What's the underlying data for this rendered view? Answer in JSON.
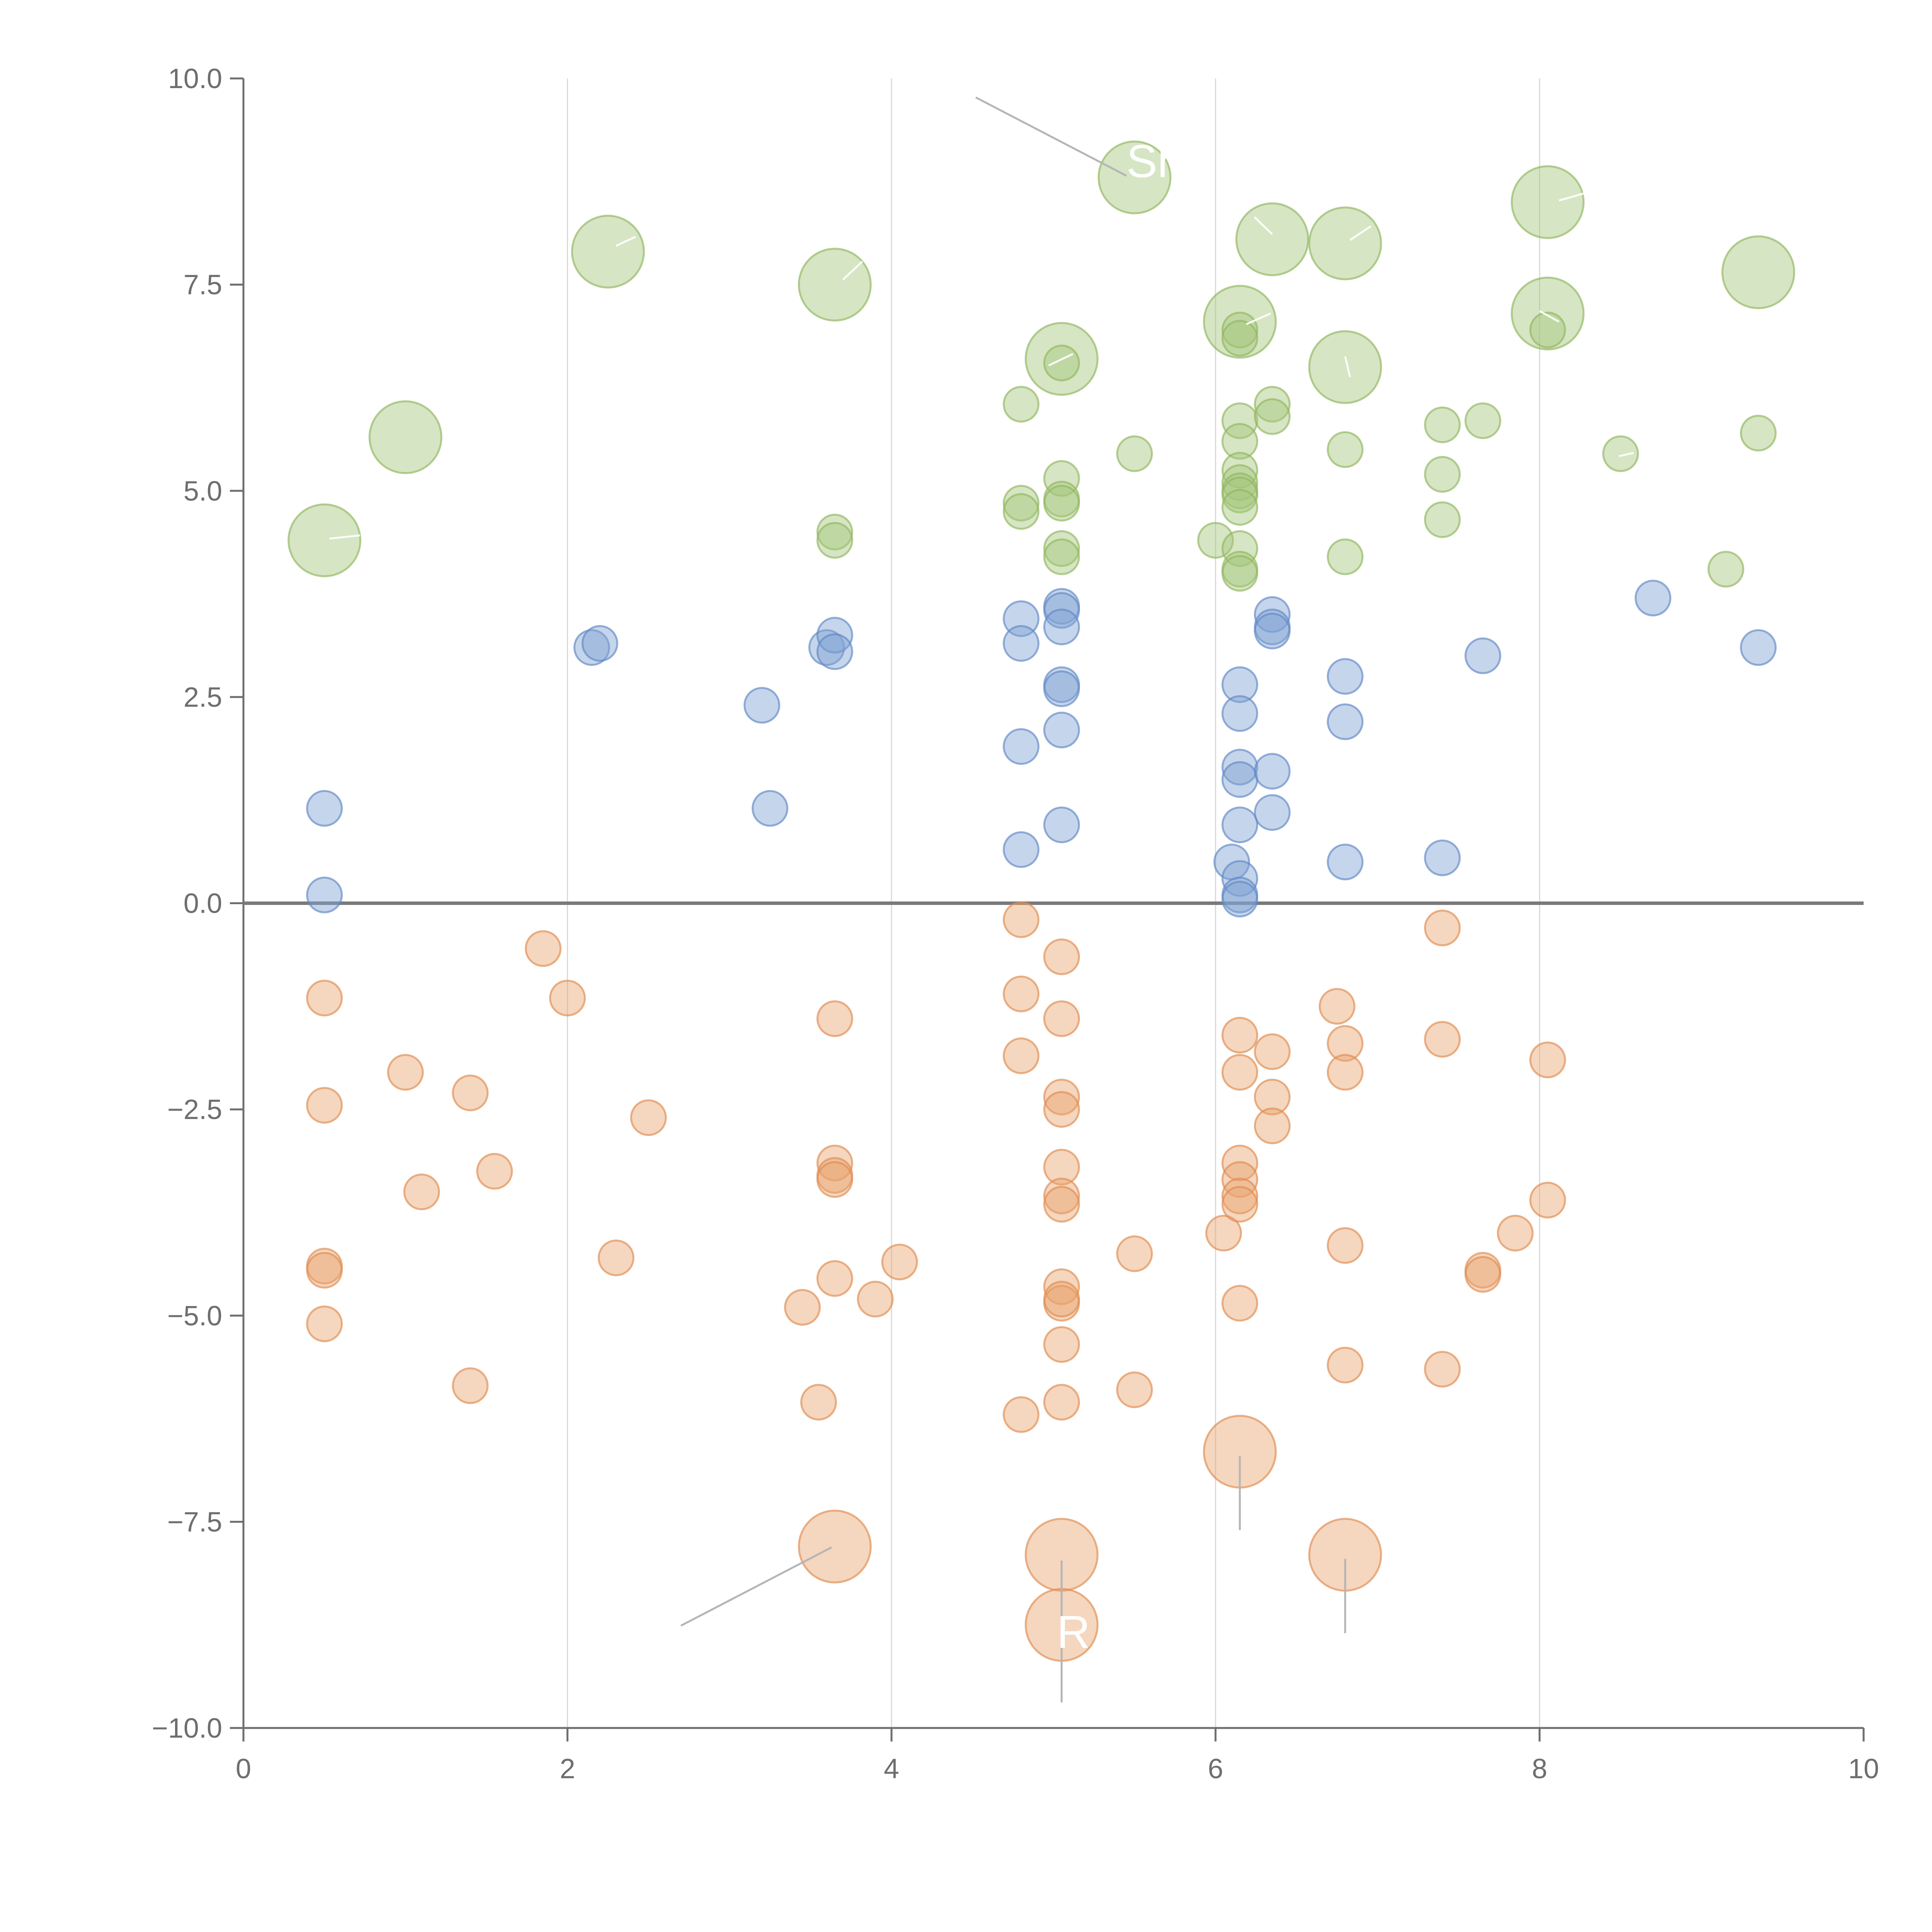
{
  "chart_data": {
    "type": "scatter",
    "variant": "bubble",
    "title": "",
    "xlabel": "",
    "ylabel": "",
    "xlim": [
      0,
      10
    ],
    "ylim": [
      -10,
      10
    ],
    "x_ticks": [
      0,
      2,
      4,
      6,
      8,
      10
    ],
    "x_tick_labels": [
      "0",
      "2",
      "4",
      "6",
      "8",
      "10"
    ],
    "y_ticks": [
      -10,
      -7.5,
      -5,
      -2.5,
      0,
      2.5,
      5,
      7.5,
      10
    ],
    "y_tick_labels": [
      "−10.0",
      "−7.5",
      "−5.0",
      "−2.5",
      "0.0",
      "2.5",
      "5.0",
      "7.5",
      "10.0"
    ],
    "vertical_gridlines": true,
    "zero_line": true,
    "size_unit": "relative",
    "colors": {
      "green_fill": "#a3c57a",
      "green_stroke": "#8fb65e",
      "blue_fill": "#7fa1d2",
      "blue_stroke": "#5f87c4",
      "orange_fill": "#e8a46e",
      "orange_stroke": "#de8b4f",
      "axis": "#6e6e6e",
      "grid": "#d9d9d9",
      "zero_line": "#7a7a7a",
      "leader": "#b5b5b5"
    },
    "series": [
      {
        "name": "green",
        "color_key": "green",
        "points": [
          {
            "x": 0.5,
            "y": 4.4,
            "s": 2
          },
          {
            "x": 1.0,
            "y": 5.65,
            "s": 2
          },
          {
            "x": 2.25,
            "y": 7.9,
            "s": 2
          },
          {
            "x": 3.65,
            "y": 7.5,
            "s": 2
          },
          {
            "x": 5.5,
            "y": 8.8,
            "s": 2
          },
          {
            "x": 5.05,
            "y": 6.6,
            "s": 2
          },
          {
            "x": 6.35,
            "y": 8.05,
            "s": 2
          },
          {
            "x": 6.8,
            "y": 8.0,
            "s": 2
          },
          {
            "x": 6.15,
            "y": 7.05,
            "s": 2
          },
          {
            "x": 6.8,
            "y": 6.5,
            "s": 2
          },
          {
            "x": 8.05,
            "y": 8.5,
            "s": 2
          },
          {
            "x": 8.05,
            "y": 7.15,
            "s": 2
          },
          {
            "x": 9.35,
            "y": 7.65,
            "s": 2
          },
          {
            "x": 3.65,
            "y": 4.5,
            "s": 1
          },
          {
            "x": 3.65,
            "y": 4.4,
            "s": 1
          },
          {
            "x": 4.8,
            "y": 6.05,
            "s": 1
          },
          {
            "x": 4.8,
            "y": 4.85,
            "s": 1
          },
          {
            "x": 4.8,
            "y": 4.75,
            "s": 1
          },
          {
            "x": 5.05,
            "y": 6.55,
            "s": 1
          },
          {
            "x": 5.05,
            "y": 5.15,
            "s": 1
          },
          {
            "x": 5.05,
            "y": 4.9,
            "s": 1
          },
          {
            "x": 5.05,
            "y": 4.85,
            "s": 1
          },
          {
            "x": 5.05,
            "y": 4.3,
            "s": 1
          },
          {
            "x": 5.05,
            "y": 4.2,
            "s": 1
          },
          {
            "x": 5.5,
            "y": 5.45,
            "s": 1
          },
          {
            "x": 6.0,
            "y": 4.4,
            "s": 1
          },
          {
            "x": 6.15,
            "y": 6.95,
            "s": 1
          },
          {
            "x": 6.15,
            "y": 6.85,
            "s": 1
          },
          {
            "x": 6.15,
            "y": 5.85,
            "s": 1
          },
          {
            "x": 6.15,
            "y": 5.6,
            "s": 1
          },
          {
            "x": 6.15,
            "y": 5.25,
            "s": 1
          },
          {
            "x": 6.15,
            "y": 5.1,
            "s": 1
          },
          {
            "x": 6.15,
            "y": 5.0,
            "s": 1
          },
          {
            "x": 6.15,
            "y": 4.95,
            "s": 1
          },
          {
            "x": 6.15,
            "y": 4.8,
            "s": 1
          },
          {
            "x": 6.15,
            "y": 4.3,
            "s": 1
          },
          {
            "x": 6.15,
            "y": 4.05,
            "s": 1
          },
          {
            "x": 6.15,
            "y": 4.0,
            "s": 1
          },
          {
            "x": 6.35,
            "y": 6.05,
            "s": 1
          },
          {
            "x": 6.35,
            "y": 5.9,
            "s": 1
          },
          {
            "x": 6.8,
            "y": 5.5,
            "s": 1
          },
          {
            "x": 6.8,
            "y": 4.2,
            "s": 1
          },
          {
            "x": 7.4,
            "y": 5.8,
            "s": 1
          },
          {
            "x": 7.4,
            "y": 5.2,
            "s": 1
          },
          {
            "x": 7.4,
            "y": 4.65,
            "s": 1
          },
          {
            "x": 7.65,
            "y": 5.85,
            "s": 1
          },
          {
            "x": 8.05,
            "y": 6.95,
            "s": 1
          },
          {
            "x": 8.5,
            "y": 5.45,
            "s": 1
          },
          {
            "x": 9.15,
            "y": 4.05,
            "s": 1
          },
          {
            "x": 9.35,
            "y": 5.7,
            "s": 1
          }
        ]
      },
      {
        "name": "blue",
        "color_key": "blue",
        "points": [
          {
            "x": 0.5,
            "y": 1.15,
            "s": 1
          },
          {
            "x": 0.5,
            "y": 0.1,
            "s": 1
          },
          {
            "x": 2.15,
            "y": 3.1,
            "s": 1
          },
          {
            "x": 2.2,
            "y": 3.15,
            "s": 1
          },
          {
            "x": 3.2,
            "y": 2.4,
            "s": 1
          },
          {
            "x": 3.25,
            "y": 1.15,
            "s": 1
          },
          {
            "x": 3.6,
            "y": 3.1,
            "s": 1
          },
          {
            "x": 3.65,
            "y": 3.25,
            "s": 1
          },
          {
            "x": 3.65,
            "y": 3.05,
            "s": 1
          },
          {
            "x": 4.8,
            "y": 3.45,
            "s": 1
          },
          {
            "x": 4.8,
            "y": 3.15,
            "s": 1
          },
          {
            "x": 4.8,
            "y": 1.9,
            "s": 1
          },
          {
            "x": 4.8,
            "y": 0.65,
            "s": 1
          },
          {
            "x": 5.05,
            "y": 3.6,
            "s": 1
          },
          {
            "x": 5.05,
            "y": 3.55,
            "s": 1
          },
          {
            "x": 5.05,
            "y": 3.35,
            "s": 1
          },
          {
            "x": 5.05,
            "y": 2.65,
            "s": 1
          },
          {
            "x": 5.05,
            "y": 2.6,
            "s": 1
          },
          {
            "x": 5.05,
            "y": 2.1,
            "s": 1
          },
          {
            "x": 5.05,
            "y": 0.95,
            "s": 1
          },
          {
            "x": 6.1,
            "y": 0.5,
            "s": 1
          },
          {
            "x": 6.15,
            "y": 2.65,
            "s": 1
          },
          {
            "x": 6.15,
            "y": 2.3,
            "s": 1
          },
          {
            "x": 6.15,
            "y": 1.65,
            "s": 1
          },
          {
            "x": 6.15,
            "y": 1.5,
            "s": 1
          },
          {
            "x": 6.15,
            "y": 0.95,
            "s": 1
          },
          {
            "x": 6.15,
            "y": 0.3,
            "s": 1
          },
          {
            "x": 6.15,
            "y": 0.1,
            "s": 1
          },
          {
            "x": 6.15,
            "y": 0.05,
            "s": 1
          },
          {
            "x": 6.35,
            "y": 3.5,
            "s": 1
          },
          {
            "x": 6.35,
            "y": 3.35,
            "s": 1
          },
          {
            "x": 6.35,
            "y": 3.3,
            "s": 1
          },
          {
            "x": 6.35,
            "y": 1.6,
            "s": 1
          },
          {
            "x": 6.35,
            "y": 1.1,
            "s": 1
          },
          {
            "x": 6.8,
            "y": 2.75,
            "s": 1
          },
          {
            "x": 6.8,
            "y": 2.2,
            "s": 1
          },
          {
            "x": 6.8,
            "y": 0.5,
            "s": 1
          },
          {
            "x": 7.4,
            "y": 0.55,
            "s": 1
          },
          {
            "x": 7.65,
            "y": 3.0,
            "s": 1
          },
          {
            "x": 8.7,
            "y": 3.7,
            "s": 1
          },
          {
            "x": 9.35,
            "y": 3.1,
            "s": 1
          }
        ]
      },
      {
        "name": "orange",
        "color_key": "orange",
        "points": [
          {
            "x": 0.5,
            "y": -1.15,
            "s": 1
          },
          {
            "x": 0.5,
            "y": -2.45,
            "s": 1
          },
          {
            "x": 0.5,
            "y": -4.4,
            "s": 1
          },
          {
            "x": 0.5,
            "y": -4.45,
            "s": 1
          },
          {
            "x": 0.5,
            "y": -5.1,
            "s": 1
          },
          {
            "x": 1.0,
            "y": -2.05,
            "s": 1
          },
          {
            "x": 1.1,
            "y": -3.5,
            "s": 1
          },
          {
            "x": 1.4,
            "y": -2.3,
            "s": 1
          },
          {
            "x": 1.4,
            "y": -5.85,
            "s": 1
          },
          {
            "x": 1.55,
            "y": -3.25,
            "s": 1
          },
          {
            "x": 1.85,
            "y": -0.55,
            "s": 1
          },
          {
            "x": 2.0,
            "y": -1.15,
            "s": 1
          },
          {
            "x": 2.3,
            "y": -4.3,
            "s": 1
          },
          {
            "x": 2.5,
            "y": -2.6,
            "s": 1
          },
          {
            "x": 3.45,
            "y": -4.9,
            "s": 1
          },
          {
            "x": 3.55,
            "y": -6.05,
            "s": 1
          },
          {
            "x": 3.65,
            "y": -1.4,
            "s": 1
          },
          {
            "x": 3.65,
            "y": -3.15,
            "s": 1
          },
          {
            "x": 3.65,
            "y": -3.3,
            "s": 1
          },
          {
            "x": 3.65,
            "y": -3.35,
            "s": 1
          },
          {
            "x": 3.65,
            "y": -4.55,
            "s": 1
          },
          {
            "x": 3.9,
            "y": -4.8,
            "s": 1
          },
          {
            "x": 4.05,
            "y": -4.35,
            "s": 1
          },
          {
            "x": 4.8,
            "y": -0.2,
            "s": 1
          },
          {
            "x": 4.8,
            "y": -1.1,
            "s": 1
          },
          {
            "x": 4.8,
            "y": -1.85,
            "s": 1
          },
          {
            "x": 4.8,
            "y": -6.2,
            "s": 1
          },
          {
            "x": 5.05,
            "y": -0.65,
            "s": 1
          },
          {
            "x": 5.05,
            "y": -1.4,
            "s": 1
          },
          {
            "x": 5.05,
            "y": -2.35,
            "s": 1
          },
          {
            "x": 5.05,
            "y": -2.5,
            "s": 1
          },
          {
            "x": 5.05,
            "y": -3.2,
            "s": 1
          },
          {
            "x": 5.05,
            "y": -3.55,
            "s": 1
          },
          {
            "x": 5.05,
            "y": -3.65,
            "s": 1
          },
          {
            "x": 5.05,
            "y": -4.65,
            "s": 1
          },
          {
            "x": 5.05,
            "y": -4.85,
            "s": 1
          },
          {
            "x": 5.05,
            "y": -4.8,
            "s": 1
          },
          {
            "x": 5.05,
            "y": -5.35,
            "s": 1
          },
          {
            "x": 5.05,
            "y": -6.05,
            "s": 1
          },
          {
            "x": 5.5,
            "y": -4.25,
            "s": 1
          },
          {
            "x": 5.5,
            "y": -5.9,
            "s": 1
          },
          {
            "x": 6.05,
            "y": -4.0,
            "s": 1
          },
          {
            "x": 6.15,
            "y": -1.6,
            "s": 1
          },
          {
            "x": 6.15,
            "y": -2.05,
            "s": 1
          },
          {
            "x": 6.15,
            "y": -3.15,
            "s": 1
          },
          {
            "x": 6.15,
            "y": -3.35,
            "s": 1
          },
          {
            "x": 6.15,
            "y": -3.55,
            "s": 1
          },
          {
            "x": 6.15,
            "y": -3.65,
            "s": 1
          },
          {
            "x": 6.15,
            "y": -4.85,
            "s": 1
          },
          {
            "x": 6.35,
            "y": -1.8,
            "s": 1
          },
          {
            "x": 6.35,
            "y": -2.35,
            "s": 1
          },
          {
            "x": 6.35,
            "y": -2.7,
            "s": 1
          },
          {
            "x": 6.75,
            "y": -1.25,
            "s": 1
          },
          {
            "x": 6.8,
            "y": -1.7,
            "s": 1
          },
          {
            "x": 6.8,
            "y": -2.05,
            "s": 1
          },
          {
            "x": 6.8,
            "y": -4.15,
            "s": 1
          },
          {
            "x": 6.8,
            "y": -5.6,
            "s": 1
          },
          {
            "x": 7.4,
            "y": -0.3,
            "s": 1
          },
          {
            "x": 7.4,
            "y": -1.65,
            "s": 1
          },
          {
            "x": 7.4,
            "y": -5.65,
            "s": 1
          },
          {
            "x": 7.65,
            "y": -4.45,
            "s": 1
          },
          {
            "x": 7.65,
            "y": -4.5,
            "s": 1
          },
          {
            "x": 7.85,
            "y": -4.0,
            "s": 1
          },
          {
            "x": 8.05,
            "y": -1.9,
            "s": 1
          },
          {
            "x": 8.05,
            "y": -3.6,
            "s": 1
          },
          {
            "x": 3.65,
            "y": -7.8,
            "s": 2
          },
          {
            "x": 5.05,
            "y": -7.9,
            "s": 2
          },
          {
            "x": 5.05,
            "y": -8.75,
            "s": 2
          },
          {
            "x": 6.15,
            "y": -6.65,
            "s": 2
          },
          {
            "x": 6.8,
            "y": -7.9,
            "s": 2
          }
        ]
      }
    ],
    "leader_lines": [
      {
        "color_key": "grey",
        "x1": 4.52,
        "y1": 9.77,
        "x2": 5.45,
        "y2": 8.82
      },
      {
        "color_key": "grey",
        "x1": 3.63,
        "y1": -7.81,
        "x2": 2.7,
        "y2": -8.76
      },
      {
        "color_key": "grey",
        "x1": 5.05,
        "y1": -7.97,
        "x2": 5.05,
        "y2": -9.69
      },
      {
        "color_key": "grey",
        "x1": 6.15,
        "y1": -6.7,
        "x2": 6.15,
        "y2": -7.6
      },
      {
        "color_key": "grey",
        "x1": 6.8,
        "y1": -7.95,
        "x2": 6.8,
        "y2": -8.85
      },
      {
        "color_key": "white",
        "x1": 0.53,
        "y1": 4.42,
        "x2": 0.72,
        "y2": 4.46
      },
      {
        "color_key": "white",
        "x1": 2.3,
        "y1": 7.97,
        "x2": 2.42,
        "y2": 8.08
      },
      {
        "color_key": "white",
        "x1": 3.7,
        "y1": 7.56,
        "x2": 3.82,
        "y2": 7.78
      },
      {
        "color_key": "white",
        "x1": 4.97,
        "y1": 6.52,
        "x2": 5.12,
        "y2": 6.66
      },
      {
        "color_key": "white",
        "x1": 6.35,
        "y1": 8.11,
        "x2": 6.24,
        "y2": 8.32
      },
      {
        "color_key": "white",
        "x1": 6.83,
        "y1": 8.04,
        "x2": 6.96,
        "y2": 8.21
      },
      {
        "color_key": "white",
        "x1": 6.19,
        "y1": 7.02,
        "x2": 6.34,
        "y2": 7.15
      },
      {
        "color_key": "white",
        "x1": 6.83,
        "y1": 6.38,
        "x2": 6.8,
        "y2": 6.63
      },
      {
        "color_key": "white",
        "x1": 8.12,
        "y1": 8.52,
        "x2": 8.3,
        "y2": 8.62
      },
      {
        "color_key": "white",
        "x1": 8.12,
        "y1": 7.05,
        "x2": 8.0,
        "y2": 7.18
      },
      {
        "color_key": "white",
        "x1": 8.49,
        "y1": 5.42,
        "x2": 8.58,
        "y2": 5.46
      }
    ],
    "annotations": [
      {
        "text": "Sh",
        "x": 5.45,
        "y": 8.99
      },
      {
        "text": "R",
        "x": 5.02,
        "y": -8.84
      }
    ]
  }
}
